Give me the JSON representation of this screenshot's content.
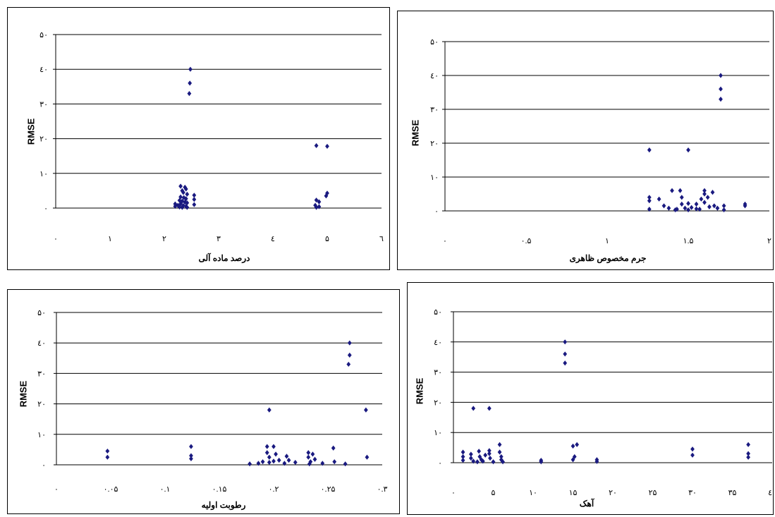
{
  "chart_data": [
    {
      "type": "scatter",
      "xlabel": "درصد ماده آلی",
      "ylabel": "RMSE",
      "xlim": [
        0,
        6
      ],
      "ylim": [
        0,
        50
      ],
      "x_ticks": [
        0,
        1,
        2,
        3,
        4,
        5,
        6
      ],
      "x_tick_labels": [
        "۰",
        "۱",
        "۲",
        "۳",
        "٤",
        "۵",
        "٦"
      ],
      "y_ticks": [
        0,
        10,
        20,
        30,
        40,
        50
      ],
      "y_tick_labels": [
        "۰",
        "۱۰",
        "۲۰",
        "۳۰",
        "٤۰",
        "۵۰"
      ],
      "grid": "horizontal",
      "marker_color": "#1a1a80",
      "points": [
        {
          "x": 2.48,
          "y": 40
        },
        {
          "x": 2.47,
          "y": 36
        },
        {
          "x": 2.46,
          "y": 33
        },
        {
          "x": 4.8,
          "y": 18
        },
        {
          "x": 5.0,
          "y": 17.8
        },
        {
          "x": 2.3,
          "y": 6.3
        },
        {
          "x": 2.38,
          "y": 6
        },
        {
          "x": 2.4,
          "y": 5.5
        },
        {
          "x": 2.33,
          "y": 5
        },
        {
          "x": 2.35,
          "y": 4.5
        },
        {
          "x": 2.42,
          "y": 4
        },
        {
          "x": 2.55,
          "y": 3.7
        },
        {
          "x": 2.3,
          "y": 3.2
        },
        {
          "x": 2.36,
          "y": 3
        },
        {
          "x": 2.4,
          "y": 2.7
        },
        {
          "x": 2.55,
          "y": 2.5
        },
        {
          "x": 2.28,
          "y": 2.2
        },
        {
          "x": 2.33,
          "y": 2
        },
        {
          "x": 2.38,
          "y": 1.7
        },
        {
          "x": 2.42,
          "y": 1.5
        },
        {
          "x": 2.2,
          "y": 1.2
        },
        {
          "x": 2.3,
          "y": 1.2
        },
        {
          "x": 2.55,
          "y": 1
        },
        {
          "x": 2.25,
          "y": 0.8
        },
        {
          "x": 2.35,
          "y": 0.7
        },
        {
          "x": 2.4,
          "y": 0.5
        },
        {
          "x": 2.28,
          "y": 0.3
        },
        {
          "x": 2.33,
          "y": 0.2
        },
        {
          "x": 2.42,
          "y": 0.2
        },
        {
          "x": 2.2,
          "y": 0.5
        },
        {
          "x": 5.0,
          "y": 4.3
        },
        {
          "x": 4.98,
          "y": 3.5
        },
        {
          "x": 4.8,
          "y": 2.3
        },
        {
          "x": 4.85,
          "y": 1.8
        },
        {
          "x": 4.78,
          "y": 0.8
        },
        {
          "x": 4.85,
          "y": 0.4
        },
        {
          "x": 4.8,
          "y": 0.2
        }
      ]
    },
    {
      "type": "scatter",
      "xlabel": "جرم مخصوص ظاهری",
      "ylabel": "RMSE",
      "xlim": [
        0,
        2
      ],
      "ylim": [
        0,
        50
      ],
      "x_ticks": [
        0,
        0.5,
        1,
        1.5,
        2
      ],
      "x_tick_labels": [
        "۰",
        "۰.۵",
        "۱",
        "۱.۵",
        "۲"
      ],
      "y_ticks": [
        0,
        10,
        20,
        30,
        40,
        50
      ],
      "y_tick_labels": [
        "۰",
        "۱۰",
        "۲۰",
        "۳۰",
        "٤۰",
        "۵۰"
      ],
      "grid": "horizontal",
      "marker_color": "#1a1a80",
      "points": [
        {
          "x": 1.7,
          "y": 40
        },
        {
          "x": 1.7,
          "y": 36
        },
        {
          "x": 1.7,
          "y": 33
        },
        {
          "x": 1.26,
          "y": 18
        },
        {
          "x": 1.5,
          "y": 18
        },
        {
          "x": 1.26,
          "y": 4
        },
        {
          "x": 1.26,
          "y": 3
        },
        {
          "x": 1.26,
          "y": 0.5
        },
        {
          "x": 1.32,
          "y": 3.5
        },
        {
          "x": 1.35,
          "y": 1.5
        },
        {
          "x": 1.4,
          "y": 6
        },
        {
          "x": 1.38,
          "y": 0.8
        },
        {
          "x": 1.43,
          "y": 0.5
        },
        {
          "x": 1.45,
          "y": 6
        },
        {
          "x": 1.46,
          "y": 2
        },
        {
          "x": 1.46,
          "y": 4
        },
        {
          "x": 1.48,
          "y": 0.8
        },
        {
          "x": 1.5,
          "y": 2.2
        },
        {
          "x": 1.5,
          "y": 0.3
        },
        {
          "x": 1.52,
          "y": 1
        },
        {
          "x": 1.55,
          "y": 2
        },
        {
          "x": 1.57,
          "y": 0.5
        },
        {
          "x": 1.58,
          "y": 3.5
        },
        {
          "x": 1.6,
          "y": 6
        },
        {
          "x": 1.6,
          "y": 5
        },
        {
          "x": 1.6,
          "y": 2.5
        },
        {
          "x": 1.62,
          "y": 4
        },
        {
          "x": 1.63,
          "y": 1.2
        },
        {
          "x": 1.65,
          "y": 5.5
        },
        {
          "x": 1.66,
          "y": 1.5
        },
        {
          "x": 1.68,
          "y": 0.8
        },
        {
          "x": 1.72,
          "y": 1.5
        },
        {
          "x": 1.72,
          "y": 0.3
        },
        {
          "x": 1.85,
          "y": 2
        },
        {
          "x": 1.85,
          "y": 1.5
        },
        {
          "x": 1.42,
          "y": 0.3
        },
        {
          "x": 1.55,
          "y": 0.6
        }
      ]
    },
    {
      "type": "scatter",
      "xlabel": "رطوبت اولیه",
      "ylabel": "RMSE",
      "xlim": [
        0,
        0.3
      ],
      "ylim": [
        0,
        50
      ],
      "x_ticks": [
        0,
        0.05,
        0.1,
        0.15,
        0.2,
        0.25,
        0.3
      ],
      "x_tick_labels": [
        "۰",
        "۰.۰۵",
        "۰.۱",
        "۰.۱۵",
        "۰.۲",
        "۰.۲۵",
        "۰.۳"
      ],
      "y_ticks": [
        0,
        10,
        20,
        30,
        40,
        50
      ],
      "y_tick_labels": [
        "۰",
        "۱۰",
        "۲۰",
        "۳۰",
        "٤۰",
        "۵۰"
      ],
      "grid": "horizontal",
      "marker_color": "#1a1a80",
      "points": [
        {
          "x": 0.27,
          "y": 40
        },
        {
          "x": 0.27,
          "y": 36
        },
        {
          "x": 0.269,
          "y": 33
        },
        {
          "x": 0.196,
          "y": 18
        },
        {
          "x": 0.285,
          "y": 18
        },
        {
          "x": 0.047,
          "y": 4.5
        },
        {
          "x": 0.047,
          "y": 2.5
        },
        {
          "x": 0.124,
          "y": 6
        },
        {
          "x": 0.124,
          "y": 3
        },
        {
          "x": 0.124,
          "y": 2
        },
        {
          "x": 0.178,
          "y": 0.3
        },
        {
          "x": 0.186,
          "y": 0.5
        },
        {
          "x": 0.19,
          "y": 1
        },
        {
          "x": 0.194,
          "y": 6
        },
        {
          "x": 0.194,
          "y": 4
        },
        {
          "x": 0.196,
          "y": 2.5
        },
        {
          "x": 0.196,
          "y": 0.8
        },
        {
          "x": 0.2,
          "y": 6
        },
        {
          "x": 0.202,
          "y": 3.5
        },
        {
          "x": 0.205,
          "y": 1.5
        },
        {
          "x": 0.21,
          "y": 0.5
        },
        {
          "x": 0.212,
          "y": 2.8
        },
        {
          "x": 0.214,
          "y": 1.5
        },
        {
          "x": 0.22,
          "y": 0.8
        },
        {
          "x": 0.232,
          "y": 4
        },
        {
          "x": 0.232,
          "y": 2.5
        },
        {
          "x": 0.234,
          "y": 1
        },
        {
          "x": 0.236,
          "y": 3.5
        },
        {
          "x": 0.238,
          "y": 1.8
        },
        {
          "x": 0.245,
          "y": 0.5
        },
        {
          "x": 0.255,
          "y": 5.5
        },
        {
          "x": 0.256,
          "y": 1
        },
        {
          "x": 0.266,
          "y": 0.3
        },
        {
          "x": 0.286,
          "y": 2.5
        },
        {
          "x": 0.2,
          "y": 1.2
        },
        {
          "x": 0.233,
          "y": 0.3
        }
      ]
    },
    {
      "type": "scatter",
      "xlabel": "آهک",
      "ylabel": "RMSE",
      "xlim": [
        0,
        40
      ],
      "ylim": [
        0,
        50
      ],
      "x_ticks": [
        0,
        5,
        10,
        15,
        20,
        25,
        30,
        35,
        40
      ],
      "x_tick_labels": [
        "۰",
        "۵",
        "۱۰",
        "۱۵",
        "۲۰",
        "۲۵",
        "۳۰",
        "۳۵",
        "٤۰"
      ],
      "y_ticks": [
        0,
        10,
        20,
        30,
        40,
        50
      ],
      "y_tick_labels": [
        "۰",
        "۱۰",
        "۲۰",
        "۳۰",
        "٤۰",
        "۵۰"
      ],
      "grid": "horizontal",
      "marker_color": "#1a1a80",
      "points": [
        {
          "x": 14,
          "y": 40
        },
        {
          "x": 14,
          "y": 36
        },
        {
          "x": 14,
          "y": 33
        },
        {
          "x": 2.5,
          "y": 18
        },
        {
          "x": 4.5,
          "y": 18
        },
        {
          "x": 1.2,
          "y": 3.5
        },
        {
          "x": 1.2,
          "y": 2
        },
        {
          "x": 1.2,
          "y": 0.8
        },
        {
          "x": 2.2,
          "y": 2.8
        },
        {
          "x": 2.2,
          "y": 1.5
        },
        {
          "x": 2.5,
          "y": 0.5
        },
        {
          "x": 3,
          "y": 0.3
        },
        {
          "x": 3.2,
          "y": 3.8
        },
        {
          "x": 3.3,
          "y": 2
        },
        {
          "x": 3.5,
          "y": 1
        },
        {
          "x": 3.7,
          "y": 0.5
        },
        {
          "x": 4,
          "y": 2.5
        },
        {
          "x": 4.5,
          "y": 4
        },
        {
          "x": 4.5,
          "y": 3
        },
        {
          "x": 4.6,
          "y": 1.5
        },
        {
          "x": 5,
          "y": 0.3
        },
        {
          "x": 5.8,
          "y": 6
        },
        {
          "x": 5.8,
          "y": 3.5
        },
        {
          "x": 6,
          "y": 2
        },
        {
          "x": 6,
          "y": 1
        },
        {
          "x": 6.2,
          "y": 0.3
        },
        {
          "x": 11,
          "y": 0.8
        },
        {
          "x": 11,
          "y": 0.3
        },
        {
          "x": 15,
          "y": 5.5
        },
        {
          "x": 15.5,
          "y": 6
        },
        {
          "x": 15.2,
          "y": 2
        },
        {
          "x": 15,
          "y": 1
        },
        {
          "x": 18,
          "y": 1
        },
        {
          "x": 18,
          "y": 0.4
        },
        {
          "x": 30,
          "y": 4.5
        },
        {
          "x": 30,
          "y": 2.5
        },
        {
          "x": 37,
          "y": 6
        },
        {
          "x": 37,
          "y": 3
        },
        {
          "x": 37,
          "y": 1.8
        }
      ]
    }
  ]
}
